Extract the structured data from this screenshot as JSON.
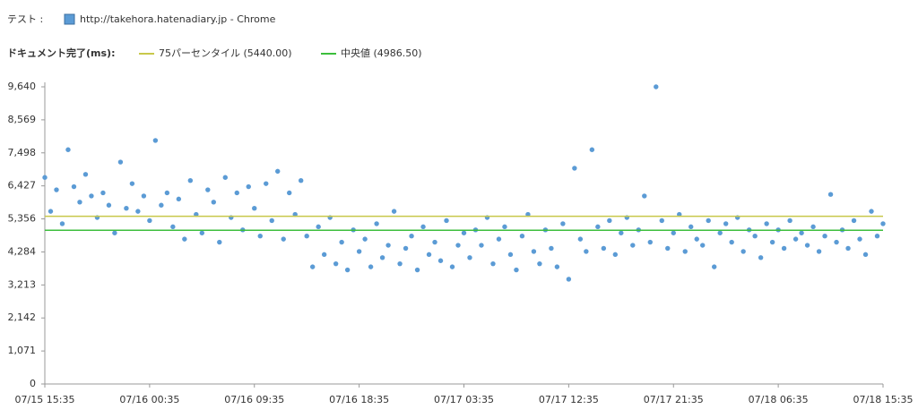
{
  "header": {
    "test_label": "テスト :",
    "test_name": "http://takehora.hatenadiary.jp - Chrome",
    "metric_label": "ドキュメント完了(ms):"
  },
  "chart_data": {
    "type": "scatter",
    "color": "#5b9bd5",
    "reference_lines": [
      {
        "name": "75パーセンタイル (5440.00)",
        "value": 5440,
        "color": "#c8c84a"
      },
      {
        "name": "中央値 (4986.50)",
        "value": 4986.5,
        "color": "#3cbe3c"
      }
    ],
    "xlim": [
      0,
      72
    ],
    "xticks": [
      {
        "value": 0,
        "label": "07/15 15:35"
      },
      {
        "value": 9,
        "label": "07/16 00:35"
      },
      {
        "value": 18,
        "label": "07/16 09:35"
      },
      {
        "value": 27,
        "label": "07/16 18:35"
      },
      {
        "value": 36,
        "label": "07/17 03:35"
      },
      {
        "value": 45,
        "label": "07/17 12:35"
      },
      {
        "value": 54,
        "label": "07/17 21:35"
      },
      {
        "value": 63,
        "label": "07/18 06:35"
      },
      {
        "value": 72,
        "label": "07/18 15:35"
      }
    ],
    "ylim": [
      0,
      9640
    ],
    "yticks": [
      0,
      {
        "value": 1071,
        "label": "1,071"
      },
      {
        "value": 2142,
        "label": "2,142"
      },
      {
        "value": 3213,
        "label": "3,213"
      },
      {
        "value": 4284,
        "label": "4,284"
      },
      {
        "value": 5356,
        "label": "5,356"
      },
      {
        "value": 6427,
        "label": "6,427"
      },
      {
        "value": 7498,
        "label": "7,498"
      },
      {
        "value": 8569,
        "label": "8,569"
      },
      {
        "value": 9640,
        "label": "9,640"
      }
    ],
    "x": [
      0,
      0.5,
      1,
      1.5,
      2,
      2.5,
      3,
      3.5,
      4,
      4.5,
      5,
      5.5,
      6,
      6.5,
      7,
      7.5,
      8,
      8.5,
      9,
      9.5,
      10,
      10.5,
      11,
      11.5,
      12,
      12.5,
      13,
      13.5,
      14,
      14.5,
      15,
      15.5,
      16,
      16.5,
      17,
      17.5,
      18,
      18.5,
      19,
      19.5,
      20,
      20.5,
      21,
      21.5,
      22,
      22.5,
      23,
      23.5,
      24,
      24.5,
      25,
      25.5,
      26,
      26.5,
      27,
      27.5,
      28,
      28.5,
      29,
      29.5,
      30,
      30.5,
      31,
      31.5,
      32,
      32.5,
      33,
      33.5,
      34,
      34.5,
      35,
      35.5,
      36,
      36.5,
      37,
      37.5,
      38,
      38.5,
      39,
      39.5,
      40,
      40.5,
      41,
      41.5,
      42,
      42.5,
      43,
      43.5,
      44,
      44.5,
      45,
      45.5,
      46,
      46.5,
      47,
      47.5,
      48,
      48.5,
      49,
      49.5,
      50,
      50.5,
      51,
      51.5,
      52,
      52.5,
      53,
      53.5,
      54,
      54.5,
      55,
      55.5,
      56,
      56.5,
      57,
      57.5,
      58,
      58.5,
      59,
      59.5,
      60,
      60.5,
      61,
      61.5,
      62,
      62.5,
      63,
      63.5,
      64,
      64.5,
      65,
      65.5,
      66,
      66.5,
      67,
      67.5,
      68,
      68.5,
      69,
      69.5,
      70,
      70.5,
      71,
      71.5,
      72
    ],
    "values": [
      6700,
      5600,
      6300,
      5200,
      7600,
      6400,
      5900,
      6800,
      6100,
      5400,
      6200,
      5800,
      4900,
      7200,
      5700,
      6500,
      5600,
      6100,
      5300,
      7900,
      5800,
      6200,
      5100,
      6000,
      4700,
      6600,
      5500,
      4900,
      6300,
      5900,
      4600,
      6700,
      5400,
      6200,
      5000,
      6400,
      5700,
      4800,
      6500,
      5300,
      6900,
      4700,
      6200,
      5500,
      6600,
      4800,
      3800,
      5100,
      4200,
      5400,
      3900,
      4600,
      3700,
      5000,
      4300,
      4700,
      3800,
      5200,
      4100,
      4500,
      5600,
      3900,
      4400,
      4800,
      3700,
      5100,
      4200,
      4600,
      4000,
      5300,
      3800,
      4500,
      4900,
      4100,
      5000,
      4500,
      5400,
      3900,
      4700,
      5100,
      4200,
      3700,
      4800,
      5500,
      4300,
      3900,
      5000,
      4400,
      3800,
      5200,
      3400,
      7000,
      4700,
      4300,
      7600,
      5100,
      4400,
      5300,
      4200,
      4900,
      5400,
      4500,
      5000,
      6100,
      4600,
      9640,
      5300,
      4400,
      4900,
      5500,
      4300,
      5100,
      4700,
      4500,
      5300,
      3800,
      4900,
      5200,
      4600,
      5400,
      4300,
      5000,
      4800,
      4100,
      5200,
      4600,
      5000,
      4400,
      5300,
      4700,
      4900,
      4500,
      5100,
      4300,
      4800,
      6150,
      4600,
      5000,
      4400,
      5300,
      4700,
      4200,
      5600,
      4800,
      5200
    ]
  }
}
